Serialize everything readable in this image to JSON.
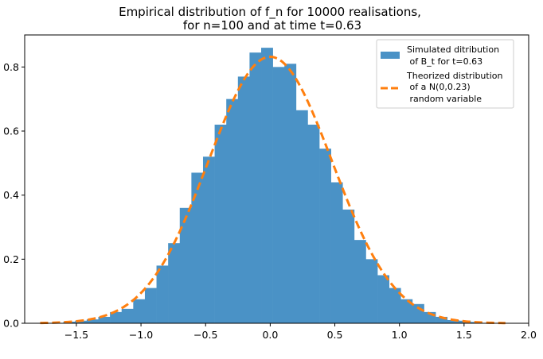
{
  "chart_data": {
    "type": "bar",
    "title_lines": [
      "Empirical distribution of f_n for 10000 realisations,",
      "for n=100 and at time t=0.63"
    ],
    "xlabel": "",
    "ylabel": "",
    "xlim": [
      -1.9,
      2.0
    ],
    "ylim": [
      0,
      0.9
    ],
    "xticks": [
      -1.5,
      -1.0,
      -0.5,
      0.0,
      0.5,
      1.0,
      1.5,
      2.0
    ],
    "xtick_labels": [
      "−1.5",
      "−1.0",
      "−0.5",
      "0.0",
      "0.5",
      "1.0",
      "1.5",
      "2.0"
    ],
    "yticks": [
      0.0,
      0.2,
      0.4,
      0.6,
      0.8
    ],
    "ytick_labels": [
      "0.0",
      "0.2",
      "0.4",
      "0.6",
      "0.8"
    ],
    "grid": false,
    "legend_position": "top-right",
    "histogram": {
      "label_lines": [
        "Simulated ditribution",
        " of B_t for t=0.63"
      ],
      "color": "#4a92c6",
      "bin_width": 0.09,
      "bin_edges_start": -1.6,
      "densities": [
        0.005,
        0.008,
        0.012,
        0.02,
        0.035,
        0.045,
        0.075,
        0.11,
        0.18,
        0.25,
        0.36,
        0.47,
        0.52,
        0.62,
        0.7,
        0.77,
        0.845,
        0.86,
        0.8,
        0.81,
        0.665,
        0.62,
        0.545,
        0.44,
        0.355,
        0.26,
        0.2,
        0.15,
        0.11,
        0.075,
        0.06,
        0.035,
        0.02,
        0.01,
        0.008,
        0.004
      ]
    },
    "curve": {
      "label_lines": [
        "Theorized distribution",
        " of a N(0,0.23)",
        " random variable"
      ],
      "color": "#ff7f0e",
      "style": "dashed",
      "distribution": "normal",
      "mean": 0,
      "variance": 0.23,
      "x_range": [
        -1.78,
        1.82
      ]
    }
  }
}
